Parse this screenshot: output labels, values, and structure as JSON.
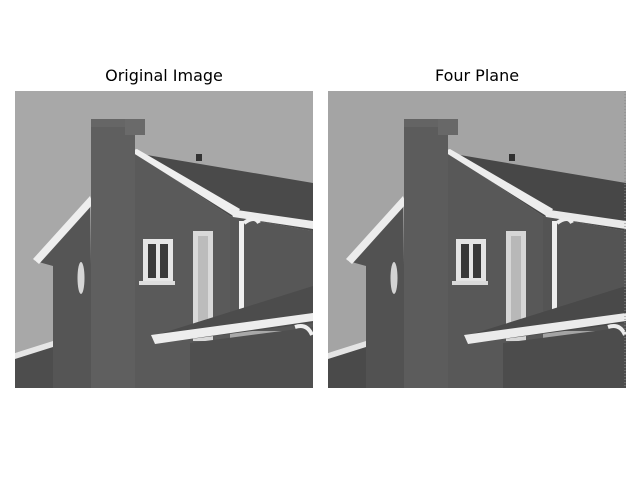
{
  "figure": {
    "panels": [
      {
        "title": "Original Image",
        "image": "grayscale photo of a house with chimney, gabled roof and windows"
      },
      {
        "title": "Four Plane",
        "image": "same house photo reconstructed from four bit planes, slightly posterized"
      }
    ]
  },
  "colors": {
    "sky": "#a9a9a9",
    "wall": "#585858",
    "chimney": "#5e5e5e",
    "roof": "#4a4a4a",
    "trim": "#f2f2f2",
    "window_frame": "#e8e8e8",
    "window_pane": "#3a3a3a"
  }
}
